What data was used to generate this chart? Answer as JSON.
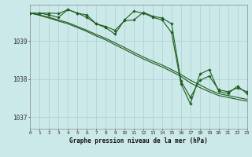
{
  "title": "Graphe pression niveau de la mer (hPa)",
  "x_labels": [
    "0",
    "1",
    "2",
    "3",
    "4",
    "5",
    "6",
    "7",
    "8",
    "9",
    "10",
    "11",
    "12",
    "13",
    "14",
    "15",
    "16",
    "17",
    "18",
    "19",
    "20",
    "21",
    "22",
    "23"
  ],
  "xlim": [
    0,
    23
  ],
  "ylim": [
    1036.7,
    1039.95
  ],
  "yticks": [
    1037,
    1038,
    1039
  ],
  "bg_color": "#cce9e9",
  "grid_color": "#aacfcf",
  "line_color": "#1e5c1e",
  "series": {
    "jagged1": [
      1039.73,
      1039.73,
      1039.73,
      1039.72,
      1039.82,
      1039.73,
      1039.68,
      1039.45,
      1039.38,
      1039.28,
      1039.53,
      1039.55,
      1039.75,
      1039.65,
      1039.6,
      1039.45,
      1037.95,
      1037.52,
      1037.97,
      1038.08,
      1037.72,
      1037.67,
      1037.77,
      1037.67
    ],
    "jagged2": [
      1039.73,
      1039.73,
      1039.68,
      1039.62,
      1039.82,
      1039.73,
      1039.62,
      1039.45,
      1039.35,
      1039.18,
      1039.55,
      1039.78,
      1039.73,
      1039.62,
      1039.55,
      1039.22,
      1037.88,
      1037.35,
      1038.13,
      1038.25,
      1037.68,
      1037.62,
      1037.82,
      1037.62
    ],
    "trend1": [
      1039.73,
      1039.68,
      1039.62,
      1039.55,
      1039.48,
      1039.38,
      1039.28,
      1039.17,
      1039.07,
      1038.95,
      1038.83,
      1038.7,
      1038.58,
      1038.47,
      1038.37,
      1038.25,
      1038.12,
      1037.97,
      1037.85,
      1037.72,
      1037.62,
      1037.57,
      1037.52,
      1037.47
    ],
    "trend2": [
      1039.73,
      1039.67,
      1039.6,
      1039.52,
      1039.45,
      1039.35,
      1039.25,
      1039.13,
      1039.03,
      1038.9,
      1038.78,
      1038.65,
      1038.53,
      1038.42,
      1038.32,
      1038.2,
      1038.07,
      1037.9,
      1037.78,
      1037.67,
      1037.57,
      1037.52,
      1037.47,
      1037.42
    ]
  }
}
